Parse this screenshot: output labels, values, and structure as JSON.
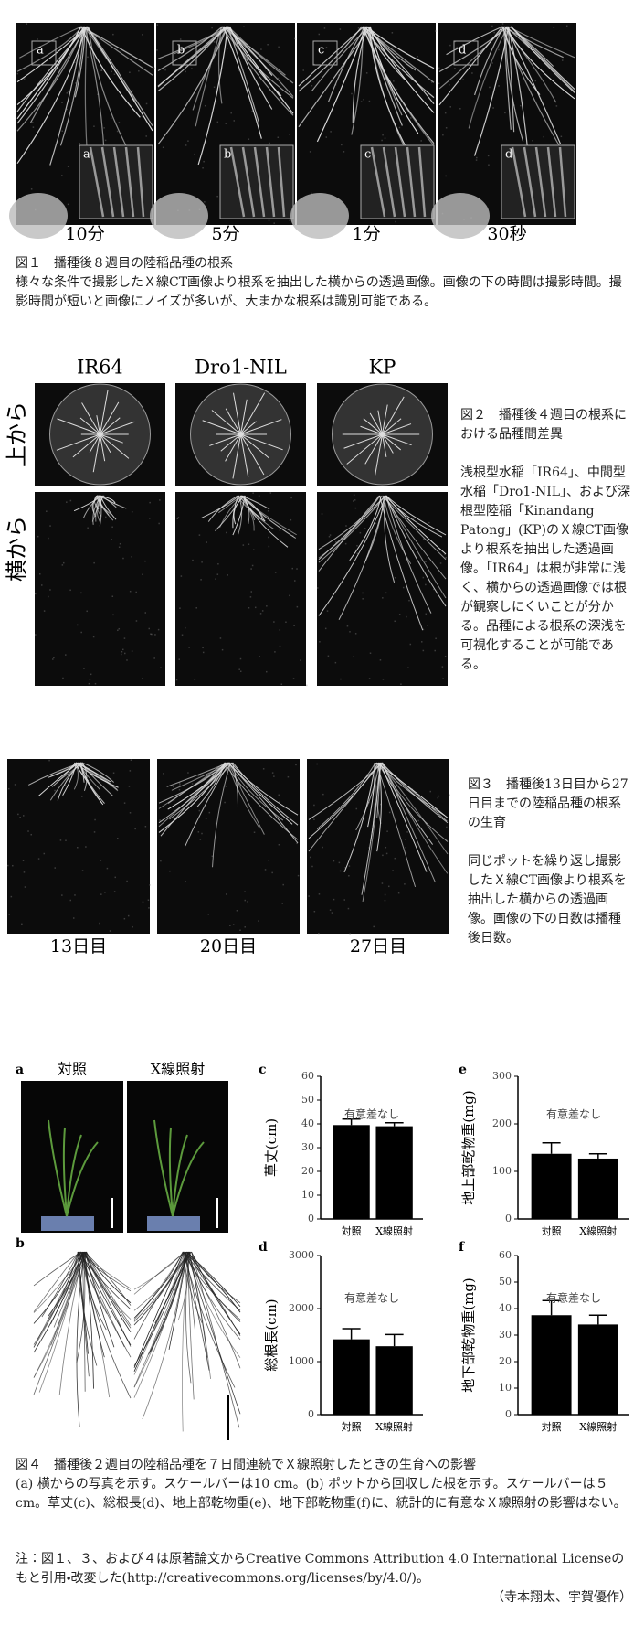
{
  "figure1": {
    "panels": [
      {
        "inset": "a",
        "label": "10分"
      },
      {
        "inset": "b",
        "label": "5分"
      },
      {
        "inset": "c",
        "label": "1分"
      },
      {
        "inset": "d",
        "label": "30秒"
      }
    ],
    "caption_title": "図１　播種後８週目の陸稲品種の根系",
    "caption_text": "様々な条件で撮影したＸ線CT画像より根系を抽出した横からの透過画像。画像の下の時間は撮影時間。撮影時間が短いと画像にノイズが多いが、大まかな根系は識別可能である。"
  },
  "figure2": {
    "columns": [
      "IR64",
      "Dro1-NIL",
      "KP"
    ],
    "rows": [
      "上から",
      "横から"
    ],
    "caption_title": "図２　播種後４週目の根系における品種間差異",
    "caption_text": "浅根型水稲「IR64」、中間型水稲「Dro1-NIL」、および深根型陸稲「Kinandang Patong」(KP)のＸ線CT画像より根系を抽出した透過画像。「IR64」は根が非常に浅く、横からの透過画像では根が観察しにくいことが分かる。品種による根系の深浅を可視化することが可能である。"
  },
  "figure3": {
    "labels": [
      "13日目",
      "20日目",
      "27日目"
    ],
    "caption_title": "図３　播種後13日目から27日目までの陸稲品種の根系の生育",
    "caption_text": "同じポットを繰り返し撮影したＸ線CT画像より根系を抽出した横からの透過画像。画像の下の日数は播種後日数。"
  },
  "figure4": {
    "panel_a": "a",
    "panel_b": "b",
    "photo_labels": [
      "対照",
      "X線照射"
    ],
    "charts": [
      {
        "letter": "c",
        "ylabel": "草丈(cm)",
        "categories": [
          "対照",
          "X線照射"
        ],
        "values": [
          39.5,
          39
        ],
        "errors": [
          2.5,
          1.5
        ],
        "ylim": [
          0,
          60
        ],
        "yticks": [
          0,
          10,
          20,
          30,
          40,
          50,
          60
        ],
        "annotation": "有意差なし",
        "color": "#000000"
      },
      {
        "letter": "d",
        "ylabel": "総根長(cm)",
        "categories": [
          "対照",
          "X線照射"
        ],
        "values": [
          1420,
          1290
        ],
        "errors": [
          200,
          220
        ],
        "ylim": [
          0,
          3000
        ],
        "yticks": [
          0,
          1000,
          2000,
          3000
        ],
        "annotation": "有意差なし",
        "color": "#000000"
      },
      {
        "letter": "e",
        "ylabel": "地上部乾物重(mg)",
        "categories": [
          "対照",
          "X線照射"
        ],
        "values": [
          137,
          127
        ],
        "errors": [
          23,
          10
        ],
        "ylim": [
          0,
          300
        ],
        "yticks": [
          0,
          100,
          200,
          300
        ],
        "annotation": "有意差なし",
        "color": "#000000"
      },
      {
        "letter": "f",
        "ylabel": "地下部乾物重(mg)",
        "categories": [
          "対照",
          "X線照射"
        ],
        "values": [
          37.5,
          34
        ],
        "errors": [
          5.5,
          3.5
        ],
        "ylim": [
          0,
          60
        ],
        "yticks": [
          0,
          10,
          20,
          30,
          40,
          50,
          60
        ],
        "annotation": "有意差なし",
        "color": "#000000"
      }
    ],
    "caption_title": "図４　播種後２週目の陸稲品種を７日間連続でＸ線照射したときの生育への影響",
    "caption_text": "(a) 横からの写真を示す。スケールバーは10 cm。(b) ポットから回収した根を示す。スケールバーは５ cm。草丈(c)、総根長(d)、地上部乾物重(e)、地下部乾物重(f)に、統計的に有意なＸ線照射の影響はない。"
  },
  "note": "注：図１、３、および４は原著論文からCreative Commons Attribution 4.0 International Licenseのもと引用・改変した(http://creativecommons.org/licenses/by/4.0/)。",
  "authors": "（寺本翔太、宇賀優作）"
}
